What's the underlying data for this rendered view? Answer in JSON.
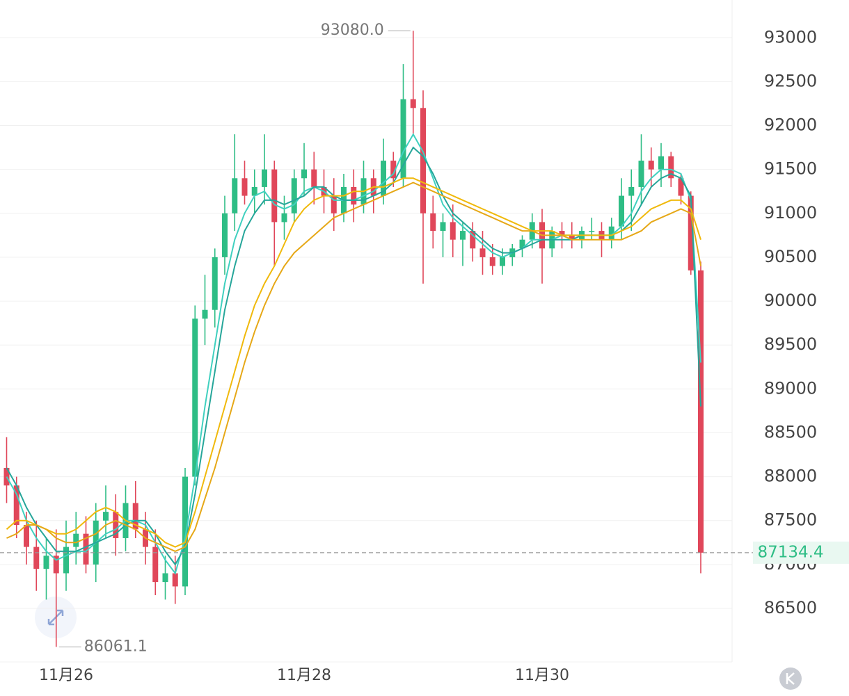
{
  "chart_data": {
    "type": "candlestick",
    "categories": [
      null,
      null,
      null,
      null,
      null,
      null,
      "11月26",
      null,
      null,
      null,
      null,
      null,
      null,
      null,
      null,
      null,
      null,
      null,
      null,
      null,
      null,
      null,
      null,
      null,
      null,
      null,
      null,
      null,
      null,
      null,
      "11月28",
      null,
      null,
      null,
      null,
      null,
      null,
      null,
      null,
      null,
      null,
      null,
      null,
      null,
      null,
      null,
      null,
      null,
      null,
      null,
      null,
      null,
      null,
      null,
      "11月30",
      null,
      null,
      null,
      null,
      null,
      null,
      null,
      null,
      null,
      null,
      null,
      null,
      null,
      null,
      null,
      null
    ],
    "open": [
      88100,
      87900,
      87450,
      87200,
      86950,
      87100,
      86900,
      87200,
      87350,
      87000,
      87500,
      87600,
      87300,
      87700,
      87400,
      87200,
      86800,
      86900,
      86750,
      88000,
      89800,
      89900,
      90500,
      91000,
      91400,
      91200,
      91300,
      91500,
      90900,
      91000,
      91400,
      91500,
      91300,
      91200,
      91000,
      91300,
      91100,
      91400,
      91200,
      91600,
      91400,
      92300,
      92200,
      91000,
      90800,
      90900,
      90700,
      90800,
      90600,
      90500,
      90400,
      90500,
      90600,
      90700,
      90900,
      90600,
      90800,
      90750,
      90700,
      90800,
      90800,
      90700,
      90850,
      91200,
      91300,
      91600,
      91500,
      91650,
      91400,
      91200,
      90350
    ],
    "high": [
      88450,
      88000,
      87600,
      87500,
      87300,
      87400,
      87500,
      87600,
      87550,
      87700,
      87900,
      87800,
      87900,
      87950,
      87600,
      87400,
      87100,
      87100,
      88100,
      89950,
      90300,
      90600,
      91200,
      91900,
      91600,
      91500,
      91900,
      91600,
      91200,
      91500,
      91800,
      91700,
      91500,
      91400,
      91450,
      91500,
      91600,
      91500,
      91850,
      91700,
      92700,
      93080.0,
      92400,
      91200,
      91000,
      91100,
      90900,
      90900,
      90800,
      90650,
      90600,
      90650,
      90750,
      91000,
      91050,
      90850,
      90900,
      90900,
      90850,
      90950,
      90900,
      90950,
      91400,
      91500,
      91900,
      91750,
      91800,
      91700,
      91450,
      91250,
      90450
    ],
    "low": [
      87700,
      87300,
      87000,
      86700,
      86600,
      86061.1,
      86700,
      87000,
      86900,
      86800,
      87300,
      87100,
      87150,
      87300,
      87000,
      86650,
      86600,
      86550,
      86650,
      87900,
      89500,
      89700,
      90300,
      90800,
      91100,
      91000,
      91100,
      90400,
      90700,
      90900,
      91200,
      91100,
      91000,
      90800,
      90900,
      90900,
      91000,
      91000,
      91100,
      91300,
      91300,
      91900,
      90200,
      90600,
      90500,
      90500,
      90400,
      90450,
      90300,
      90300,
      90300,
      90400,
      90500,
      90600,
      90200,
      90500,
      90600,
      90600,
      90600,
      90700,
      90500,
      90600,
      90700,
      90800,
      91100,
      91300,
      91300,
      91300,
      91100,
      90300,
      86900
    ],
    "close": [
      87900,
      87450,
      87200,
      86950,
      87100,
      86900,
      87200,
      87350,
      87000,
      87500,
      87600,
      87300,
      87700,
      87400,
      87200,
      86800,
      86900,
      86750,
      88000,
      89800,
      89900,
      90500,
      91000,
      91400,
      91200,
      91300,
      91500,
      90900,
      91000,
      91400,
      91500,
      91300,
      91200,
      91000,
      91300,
      91100,
      91400,
      91200,
      91600,
      91400,
      92300,
      92200,
      91000,
      90800,
      90900,
      90700,
      90800,
      90600,
      90500,
      90400,
      90500,
      90600,
      90700,
      90900,
      90600,
      90800,
      90750,
      90700,
      90800,
      90800,
      90700,
      90850,
      91200,
      91300,
      91600,
      91500,
      91650,
      91400,
      91200,
      90350,
      87134.4
    ],
    "up_color": "#2ebd85",
    "down_color": "#e0475a",
    "series": [
      {
        "color": "#3fd0bf",
        "values": [
          88000,
          87800,
          87500,
          87300,
          87150,
          87050,
          87100,
          87150,
          87150,
          87250,
          87350,
          87400,
          87500,
          87500,
          87450,
          87250,
          87050,
          86900,
          87300,
          88000,
          88800,
          89500,
          90200,
          90700,
          91000,
          91200,
          91250,
          91100,
          91050,
          91100,
          91250,
          91300,
          91250,
          91150,
          91150,
          91150,
          91200,
          91250,
          91350,
          91450,
          91700,
          91900,
          91700,
          91400,
          91100,
          90950,
          90850,
          90750,
          90650,
          90550,
          90500,
          90550,
          90600,
          90700,
          90700,
          90700,
          90750,
          90750,
          90750,
          90750,
          90750,
          90750,
          90850,
          91000,
          91250,
          91400,
          91500,
          91500,
          91450,
          91150,
          89300
        ]
      },
      {
        "color": "#26a69a",
        "values": [
          88100,
          87900,
          87650,
          87450,
          87300,
          87150,
          87150,
          87150,
          87200,
          87250,
          87300,
          87350,
          87450,
          87500,
          87500,
          87350,
          87150,
          87000,
          87200,
          87800,
          88500,
          89200,
          89900,
          90400,
          90800,
          91000,
          91150,
          91150,
          91100,
          91150,
          91200,
          91300,
          91300,
          91200,
          91150,
          91150,
          91150,
          91200,
          91250,
          91350,
          91550,
          91750,
          91650,
          91450,
          91200,
          91000,
          90900,
          90800,
          90700,
          90600,
          90550,
          90550,
          90600,
          90650,
          90700,
          90700,
          90700,
          90700,
          90750,
          90750,
          90750,
          90750,
          90800,
          90900,
          91100,
          91300,
          91400,
          91450,
          91400,
          91200,
          88800
        ]
      },
      {
        "color": "#f0b90b",
        "values": [
          87400,
          87500,
          87500,
          87450,
          87400,
          87350,
          87350,
          87400,
          87500,
          87600,
          87650,
          87600,
          87500,
          87450,
          87400,
          87350,
          87250,
          87200,
          87250,
          87600,
          88000,
          88400,
          88800,
          89200,
          89600,
          89950,
          90200,
          90400,
          90650,
          90900,
          91050,
          91150,
          91200,
          91200,
          91200,
          91250,
          91250,
          91300,
          91300,
          91350,
          91400,
          91400,
          91350,
          91300,
          91250,
          91200,
          91150,
          91100,
          91050,
          91000,
          90950,
          90900,
          90850,
          90800,
          90800,
          90800,
          90750,
          90750,
          90750,
          90750,
          90750,
          90750,
          90800,
          90850,
          90950,
          91050,
          91100,
          91150,
          91150,
          91050,
          90700
        ]
      },
      {
        "color": "#e6a817",
        "values": [
          87300,
          87350,
          87450,
          87450,
          87400,
          87300,
          87250,
          87250,
          87300,
          87350,
          87450,
          87500,
          87450,
          87400,
          87300,
          87250,
          87200,
          87150,
          87200,
          87400,
          87750,
          88100,
          88500,
          88900,
          89300,
          89650,
          89950,
          90200,
          90400,
          90550,
          90650,
          90750,
          90850,
          90950,
          91000,
          91050,
          91100,
          91150,
          91200,
          91250,
          91300,
          91350,
          91300,
          91250,
          91200,
          91150,
          91100,
          91050,
          91000,
          90950,
          90900,
          90850,
          90800,
          90800,
          90750,
          90750,
          90750,
          90700,
          90700,
          90700,
          90700,
          90700,
          90700,
          90750,
          90800,
          90900,
          90950,
          91000,
          91050,
          91000,
          90400
        ]
      }
    ],
    "ylim": [
      85890,
      93430
    ],
    "yticks": [
      86500,
      87000,
      87500,
      88000,
      88500,
      89000,
      89500,
      90000,
      90500,
      91000,
      91500,
      92000,
      92500,
      93000
    ],
    "grid": true,
    "high_label": "93080.0",
    "low_label": "86061.1",
    "last_price_label": "87134.4"
  }
}
